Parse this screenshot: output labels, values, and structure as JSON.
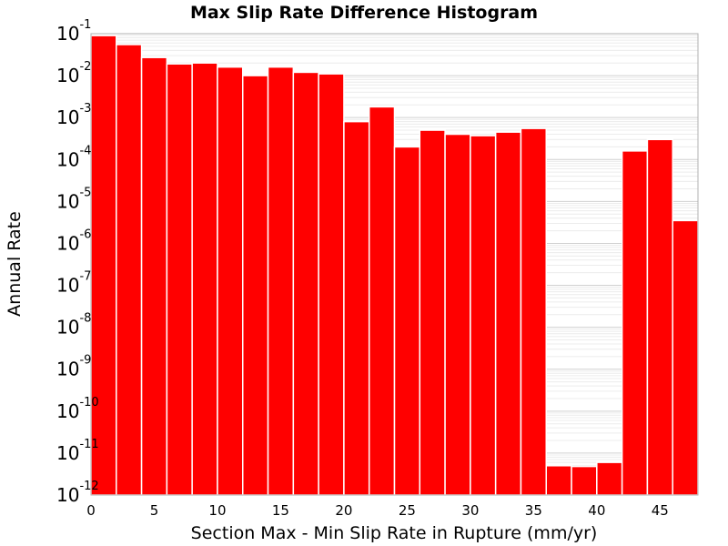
{
  "chart_data": {
    "type": "bar",
    "title": "Max Slip Rate Difference Histogram",
    "xlabel": "Section Max - Min Slip Rate in Rupture (mm/yr)",
    "ylabel": "Annual Rate",
    "y_scale": "log",
    "xlim": [
      0,
      48
    ],
    "ylim": [
      1e-12,
      0.1
    ],
    "bin_width": 2,
    "x_ticks": [
      "0",
      "5",
      "10",
      "15",
      "20",
      "25",
      "30",
      "35",
      "40",
      "45"
    ],
    "y_ticks": [
      {
        "base": "10",
        "exp": "-1"
      },
      {
        "base": "10",
        "exp": "-2"
      },
      {
        "base": "10",
        "exp": "-3"
      },
      {
        "base": "10",
        "exp": "-4"
      },
      {
        "base": "10",
        "exp": "-5"
      },
      {
        "base": "10",
        "exp": "-6"
      },
      {
        "base": "10",
        "exp": "-7"
      },
      {
        "base": "10",
        "exp": "-8"
      },
      {
        "base": "10",
        "exp": "-9"
      },
      {
        "base": "10",
        "exp": "-10"
      },
      {
        "base": "10",
        "exp": "-11"
      },
      {
        "base": "10",
        "exp": "-12"
      }
    ],
    "grid": true,
    "color": "#ff0000",
    "bins": [
      {
        "x_start": 0,
        "x_end": 2,
        "value": 0.09
      },
      {
        "x_start": 2,
        "x_end": 4,
        "value": 0.055
      },
      {
        "x_start": 4,
        "x_end": 6,
        "value": 0.027
      },
      {
        "x_start": 6,
        "x_end": 8,
        "value": 0.019
      },
      {
        "x_start": 8,
        "x_end": 10,
        "value": 0.02
      },
      {
        "x_start": 10,
        "x_end": 12,
        "value": 0.016
      },
      {
        "x_start": 12,
        "x_end": 14,
        "value": 0.01
      },
      {
        "x_start": 14,
        "x_end": 16,
        "value": 0.016
      },
      {
        "x_start": 16,
        "x_end": 18,
        "value": 0.012
      },
      {
        "x_start": 18,
        "x_end": 20,
        "value": 0.011
      },
      {
        "x_start": 20,
        "x_end": 22,
        "value": 0.0008
      },
      {
        "x_start": 22,
        "x_end": 24,
        "value": 0.0018
      },
      {
        "x_start": 24,
        "x_end": 26,
        "value": 0.0002
      },
      {
        "x_start": 26,
        "x_end": 28,
        "value": 0.0005
      },
      {
        "x_start": 28,
        "x_end": 30,
        "value": 0.0004
      },
      {
        "x_start": 30,
        "x_end": 32,
        "value": 0.00037
      },
      {
        "x_start": 32,
        "x_end": 34,
        "value": 0.00045
      },
      {
        "x_start": 34,
        "x_end": 36,
        "value": 0.00055
      },
      {
        "x_start": 36,
        "x_end": 38,
        "value": 5e-12
      },
      {
        "x_start": 38,
        "x_end": 40,
        "value": 4.8e-12
      },
      {
        "x_start": 40,
        "x_end": 42,
        "value": 6e-12
      },
      {
        "x_start": 42,
        "x_end": 44,
        "value": 0.00016
      },
      {
        "x_start": 44,
        "x_end": 46,
        "value": 0.0003
      },
      {
        "x_start": 46,
        "x_end": 48,
        "value": 3.5e-06
      }
    ]
  }
}
